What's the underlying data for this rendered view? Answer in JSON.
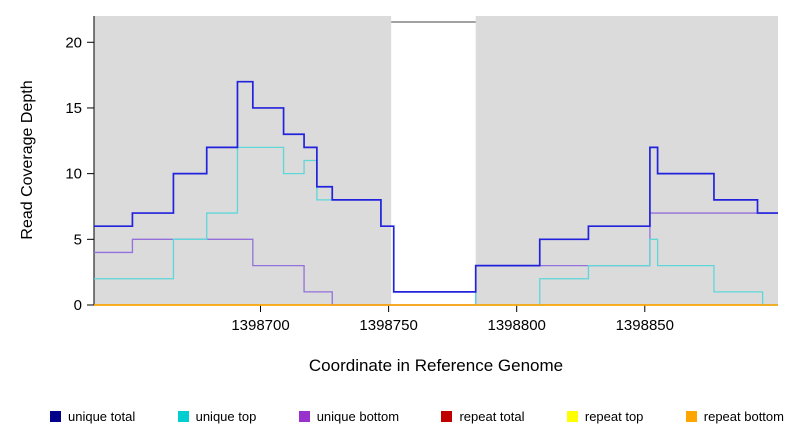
{
  "figure": {
    "background": "#FFFFFF",
    "shade_color": "#DBDBDB",
    "axis_color": "#000000"
  },
  "chart_data": {
    "type": "line",
    "subtype": "step",
    "title": "",
    "xlabel": "Coordinate in Reference Genome",
    "ylabel": "Read Coverage Depth",
    "xlim": [
      1398635,
      1398902
    ],
    "ylim": [
      0,
      22
    ],
    "x_ticks": [
      1398700,
      1398750,
      1398800,
      1398850
    ],
    "y_ticks": [
      0,
      5,
      10,
      15,
      20
    ],
    "grid": false,
    "legend_position": "bottom",
    "shaded_regions": [
      {
        "x1": 1398635,
        "x2": 1398751
      },
      {
        "x1": 1398784,
        "x2": 1398902
      }
    ],
    "uncovered_gap": {
      "x1": 1398751,
      "x2": 1398784
    },
    "draw_order": [
      "repeat total",
      "repeat top",
      "unique bottom",
      "unique top",
      "unique total",
      "repeat bottom"
    ],
    "series": [
      {
        "name": "unique total",
        "color": "#2222DD",
        "legend_color": "#00008B",
        "width": 1.7,
        "points": [
          [
            1398635,
            6
          ],
          [
            1398650,
            7
          ],
          [
            1398666,
            10
          ],
          [
            1398679,
            12
          ],
          [
            1398691,
            17
          ],
          [
            1398697,
            15
          ],
          [
            1398709,
            13
          ],
          [
            1398717,
            12
          ],
          [
            1398722,
            9
          ],
          [
            1398728,
            8
          ],
          [
            1398747,
            6
          ],
          [
            1398752,
            1
          ],
          [
            1398784,
            3
          ],
          [
            1398809,
            5
          ],
          [
            1398828,
            6
          ],
          [
            1398852,
            12
          ],
          [
            1398855,
            10
          ],
          [
            1398877,
            8
          ],
          [
            1398894,
            7
          ]
        ]
      },
      {
        "name": "unique top",
        "color": "#5FD6D8",
        "legend_color": "#00CED1",
        "width": 1.3,
        "points": [
          [
            1398635,
            2
          ],
          [
            1398666,
            5
          ],
          [
            1398679,
            7
          ],
          [
            1398691,
            12
          ],
          [
            1398709,
            10
          ],
          [
            1398717,
            11
          ],
          [
            1398722,
            8
          ],
          [
            1398747,
            6
          ],
          [
            1398752,
            1
          ],
          [
            1398784,
            0
          ],
          [
            1398809,
            2
          ],
          [
            1398828,
            3
          ],
          [
            1398852,
            5
          ],
          [
            1398855,
            3
          ],
          [
            1398877,
            1
          ],
          [
            1398896,
            0
          ]
        ]
      },
      {
        "name": "unique bottom",
        "color": "#9370DB",
        "legend_color": "#9932CC",
        "width": 1.3,
        "points": [
          [
            1398635,
            4
          ],
          [
            1398650,
            5
          ],
          [
            1398697,
            3
          ],
          [
            1398717,
            1
          ],
          [
            1398728,
            0
          ],
          [
            1398784,
            3
          ],
          [
            1398852,
            7
          ]
        ]
      },
      {
        "name": "repeat total",
        "color": "#C00000",
        "legend_color": "#C00000",
        "width": 1.2,
        "points": [
          [
            1398635,
            0
          ]
        ]
      },
      {
        "name": "repeat top",
        "color": "#FFFF00",
        "legend_color": "#FFFF00",
        "width": 1.2,
        "points": [
          [
            1398635,
            0
          ]
        ]
      },
      {
        "name": "repeat bottom",
        "color": "#FFA500",
        "legend_color": "#FFA500",
        "width": 1.5,
        "points": [
          [
            1398635,
            0
          ]
        ]
      }
    ]
  }
}
